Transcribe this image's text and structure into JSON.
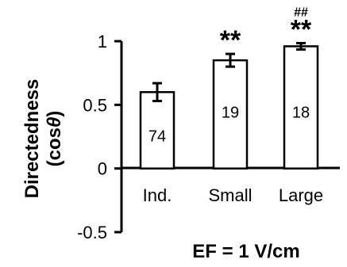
{
  "chart_data": {
    "type": "bar",
    "categories": [
      "Ind.",
      "Small",
      "Large"
    ],
    "values": [
      0.6,
      0.85,
      0.96
    ],
    "errors": [
      0.07,
      0.05,
      0.025
    ],
    "n_labels": [
      "74",
      "19",
      "18"
    ],
    "significance": [
      "",
      "**",
      "**"
    ],
    "significance2": [
      "",
      "",
      "##"
    ],
    "ylabel_line1": "Directedness",
    "ylabel_line2": "(cos",
    "ylabel_theta": "θ",
    "ylabel_close": ")",
    "xlabel": "EF = 1 V/cm",
    "yticks": [
      "-0.5",
      "0",
      "0.5",
      "1"
    ],
    "ylim": [
      -0.5,
      1
    ],
    "grid": false
  }
}
